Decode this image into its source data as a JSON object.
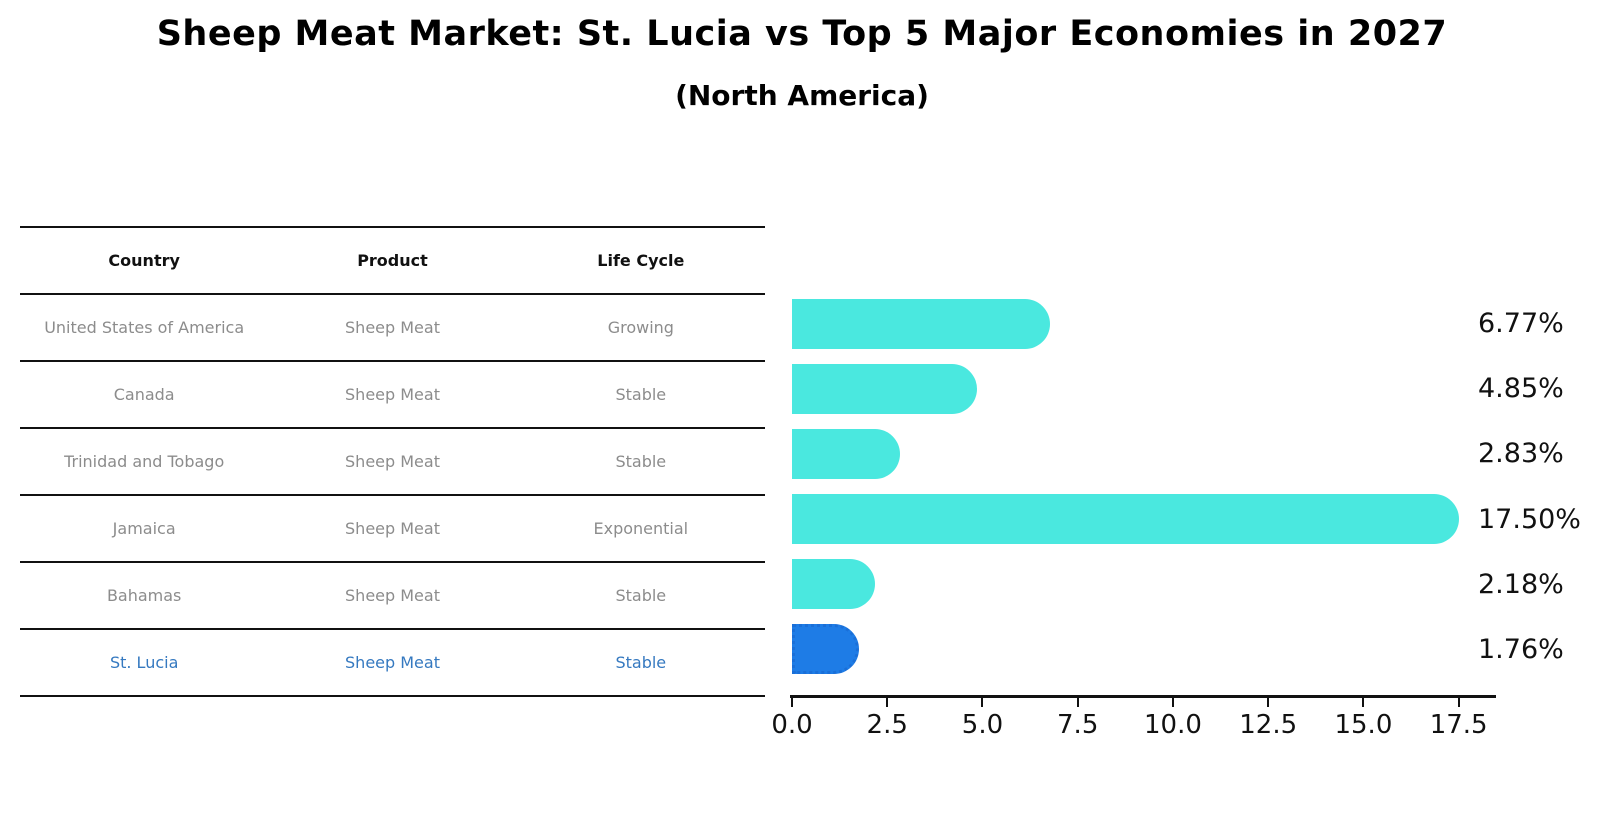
{
  "header": {
    "title": "Sheep Meat Market: St. Lucia vs Top 5 Major Economies in 2027",
    "subtitle": "(North America)"
  },
  "table": {
    "columns": [
      "Country",
      "Product",
      "Life Cycle"
    ],
    "rows": [
      {
        "country": "United States of America",
        "product": "Sheep Meat",
        "life_cycle": "Growing"
      },
      {
        "country": "Canada",
        "product": "Sheep Meat",
        "life_cycle": "Stable"
      },
      {
        "country": "Trinidad and Tobago",
        "product": "Sheep Meat",
        "life_cycle": "Stable"
      },
      {
        "country": "Jamaica",
        "product": "Sheep Meat",
        "life_cycle": "Exponential"
      },
      {
        "country": "Bahamas",
        "product": "Sheep Meat",
        "life_cycle": "Stable"
      },
      {
        "country": "St. Lucia",
        "product": "Sheep Meat",
        "life_cycle": "Stable"
      }
    ],
    "highlight_row": 5
  },
  "chart_data": {
    "type": "bar",
    "orientation": "horizontal",
    "title": "Sheep Meat Market: St. Lucia vs Top 5 Major Economies in 2027 (North America)",
    "categories": [
      "United States of America",
      "Canada",
      "Trinidad and Tobago",
      "Jamaica",
      "Bahamas",
      "St. Lucia"
    ],
    "values": [
      6.77,
      4.85,
      2.83,
      17.5,
      2.18,
      1.76
    ],
    "value_labels": [
      "6.77%",
      "4.85%",
      "2.83%",
      "17.50%",
      "2.18%",
      "1.76%"
    ],
    "xlabel": "",
    "ylabel": "",
    "xlim": [
      0,
      18.375
    ],
    "xticks": [
      0.0,
      2.5,
      5.0,
      7.5,
      10.0,
      12.5,
      15.0,
      17.5
    ],
    "xtick_labels": [
      "0.0",
      "2.5",
      "5.0",
      "7.5",
      "10.0",
      "12.5",
      "15.0",
      "17.5"
    ],
    "grid": false,
    "legend": false,
    "highlight_index": 5,
    "bar_color": "#4ae8df",
    "highlight_color": "#1e7ce6",
    "highlight_border_color": "#1a6fd8",
    "highlight_border_style": "dotted"
  }
}
